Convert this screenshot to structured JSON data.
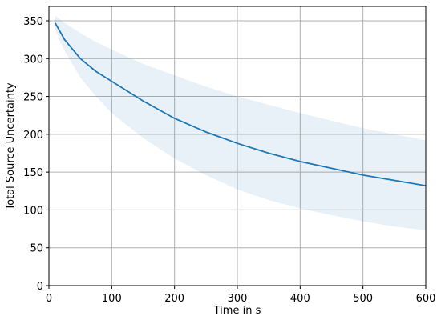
{
  "chart_data": {
    "type": "line",
    "xlabel": "Time in s",
    "ylabel": "Total Source Uncertainty",
    "x": [
      10,
      25,
      50,
      75,
      100,
      150,
      200,
      250,
      300,
      350,
      400,
      450,
      500,
      550,
      600
    ],
    "values": [
      347,
      325,
      300,
      283,
      270,
      244,
      221,
      203,
      188,
      175,
      164,
      155,
      146,
      139,
      132
    ],
    "band_upper": [
      357,
      347,
      334,
      322,
      312,
      293,
      278,
      263,
      250,
      239,
      228,
      218,
      208,
      200,
      192
    ],
    "band_lower": [
      338,
      310,
      275,
      250,
      228,
      195,
      168,
      146,
      127,
      113,
      102,
      93,
      85,
      78,
      73
    ],
    "color": "#1f77b4",
    "xlim": [
      0,
      600
    ],
    "ylim": [
      0,
      369
    ],
    "xticks": [
      0,
      100,
      200,
      300,
      400,
      500,
      600
    ],
    "yticks": [
      0,
      50,
      100,
      150,
      200,
      250,
      300,
      350
    ],
    "grid": true
  }
}
